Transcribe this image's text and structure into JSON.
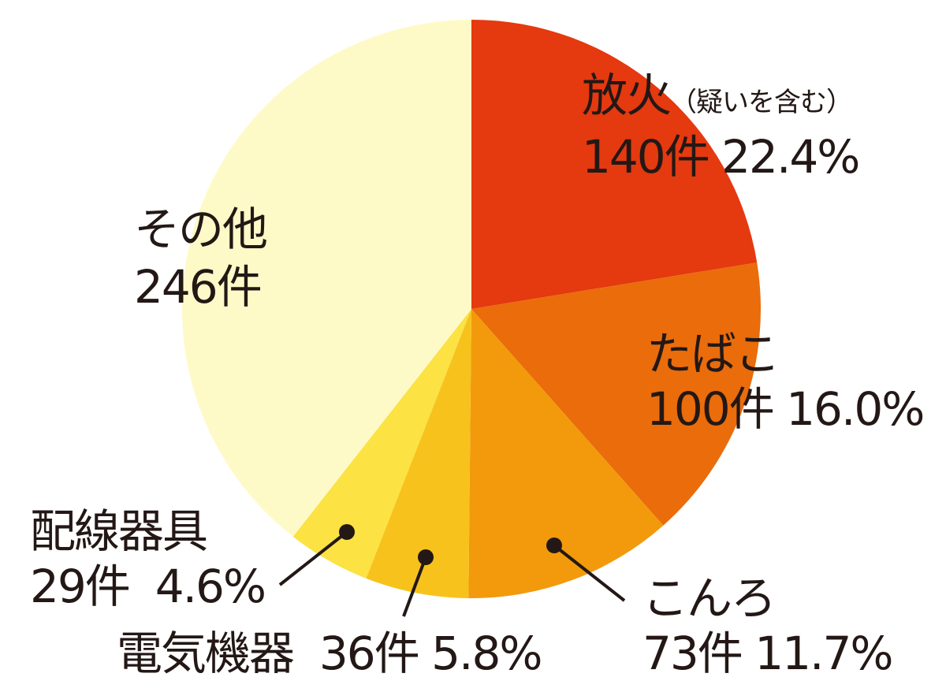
{
  "chart_data": {
    "type": "pie",
    "start": "top",
    "direction": "clockwise",
    "slices": [
      {
        "label": "放火",
        "note": "（疑いを含む）",
        "count_label": "140件",
        "value": 140,
        "percent_label": "22.4%",
        "color": "#e5390f"
      },
      {
        "label": "たばこ",
        "count_label": "100件",
        "value": 100,
        "percent_label": "16.0%",
        "color": "#ea6c0b"
      },
      {
        "label": "こんろ",
        "count_label": "73件",
        "value": 73,
        "percent_label": "11.7%",
        "color": "#f29a0b"
      },
      {
        "label": "電気機器",
        "count_label": "36件",
        "value": 36,
        "percent_label": "5.8%",
        "color": "#f7c21b"
      },
      {
        "label": "配線器具",
        "count_label": "29件",
        "value": 29,
        "percent_label": "4.6%",
        "color": "#fce243"
      },
      {
        "label": "その他",
        "count_label": "246件",
        "value": 246,
        "color": "#fefac8"
      }
    ]
  }
}
